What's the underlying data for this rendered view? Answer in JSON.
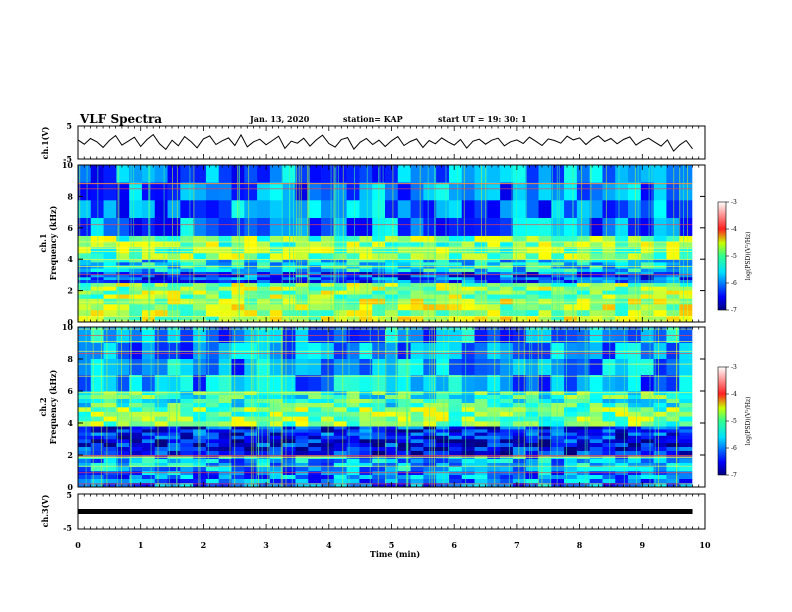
{
  "header": {
    "title": "VLF Spectra",
    "date": "Jan. 13, 2020",
    "station": "station= KAP",
    "start_ut": "start  UT  =   19: 30: 1"
  },
  "chart_data": [
    {
      "id": "ch1_voltage",
      "type": "line",
      "ylabel": "ch.1(V)",
      "ylim": [
        -5,
        5
      ],
      "yticks": [
        "-5",
        "5"
      ],
      "xlim": [
        0,
        10
      ],
      "color": "#000000",
      "series": [
        {
          "x": [
            0.0,
            0.1,
            0.2,
            0.3,
            0.4,
            0.5,
            0.6,
            0.7,
            0.8,
            0.9,
            1.0,
            1.1,
            1.2,
            1.3,
            1.4,
            1.5,
            1.6,
            1.7,
            1.8,
            1.9,
            2.0,
            2.1,
            2.2,
            2.3,
            2.4,
            2.5,
            2.6,
            2.7,
            2.8,
            2.9,
            3.0,
            3.1,
            3.2,
            3.3,
            3.4,
            3.5,
            3.6,
            3.7,
            3.8,
            3.9,
            4.0,
            4.1,
            4.2,
            4.3,
            4.4,
            4.5,
            4.6,
            4.7,
            4.8,
            4.9,
            5.0,
            5.1,
            5.2,
            5.3,
            5.4,
            5.5,
            5.6,
            5.7,
            5.8,
            5.9,
            6.0,
            6.1,
            6.2,
            6.3,
            6.4,
            6.5,
            6.6,
            6.7,
            6.8,
            6.9,
            7.0,
            7.1,
            7.2,
            7.3,
            7.4,
            7.5,
            7.6,
            7.7,
            7.8,
            7.9,
            8.0,
            8.1,
            8.2,
            8.3,
            8.4,
            8.5,
            8.6,
            8.7,
            8.8,
            8.9,
            9.0,
            9.1,
            9.2,
            9.3,
            9.4,
            9.5,
            9.6,
            9.7,
            9.8
          ],
          "y": [
            0.8,
            -0.5,
            1.2,
            0.2,
            -1.5,
            0.6,
            2.1,
            -0.8,
            0.4,
            1.6,
            -1.2,
            0.9,
            2.4,
            -0.4,
            -2.1,
            0.7,
            -1.0,
            1.8,
            0.3,
            -1.6,
            1.1,
            2.0,
            -0.6,
            0.5,
            1.4,
            -0.9,
            2.3,
            -1.3,
            0.2,
            1.0,
            -0.7,
            0.6,
            1.9,
            -1.8,
            0.4,
            -0.2,
            1.3,
            -1.1,
            0.8,
            2.2,
            -0.3,
            -1.4,
            0.9,
            1.5,
            -2.0,
            0.1,
            1.2,
            -0.6,
            0.7,
            -1.2,
            0.5,
            1.8,
            -0.9,
            0.3,
            1.1,
            -1.5,
            0.6,
            -0.4,
            1.4,
            0.2,
            -0.8,
            0.9,
            -1.7,
            0.4,
            1.0,
            -0.5,
            0.7,
            1.3,
            -1.0,
            0.2,
            0.8,
            -0.3,
            1.6,
            0.4,
            -0.9,
            1.1,
            0.6,
            -0.2,
            1.9,
            0.8,
            1.4,
            -0.6,
            1.0,
            2.0,
            0.3,
            1.2,
            -0.4,
            0.9,
            1.7,
            -0.8,
            0.5,
            1.3,
            0.1,
            -1.1,
            0.8,
            -2.6,
            -0.7,
            0.6,
            -1.9
          ]
        }
      ]
    },
    {
      "id": "ch1_spectrogram",
      "type": "heatmap",
      "ylabel": "ch.1\nFrequency (kHz)",
      "ylim": [
        0,
        10
      ],
      "yticks": [
        "0",
        "2",
        "4",
        "6",
        "8",
        "10"
      ],
      "xlim": [
        0,
        10
      ],
      "colorbar": {
        "label": "log(PSD)(V²/Hz)",
        "range": [
          -7,
          -3
        ],
        "ticks": [
          "-7",
          "-6",
          "-5",
          "-4",
          "-3"
        ]
      },
      "dominant_level_by_frequency": [
        {
          "from_khz": 0.0,
          "to_khz": 1.5,
          "log_psd": -4.8
        },
        {
          "from_khz": 1.5,
          "to_khz": 2.5,
          "log_psd": -4.9
        },
        {
          "from_khz": 2.5,
          "to_khz": 3.2,
          "log_psd": -6.2
        },
        {
          "from_khz": 3.2,
          "to_khz": 4.0,
          "log_psd": -5.6
        },
        {
          "from_khz": 4.0,
          "to_khz": 5.5,
          "log_psd": -5.0
        },
        {
          "from_khz": 5.5,
          "to_khz": 10.0,
          "log_psd": -6.0
        }
      ]
    },
    {
      "id": "ch2_spectrogram",
      "type": "heatmap",
      "ylabel": "ch.2\nFrequency (kHz)",
      "ylim": [
        0,
        10
      ],
      "yticks": [
        "0",
        "2",
        "4",
        "6",
        "8",
        "10"
      ],
      "xlim": [
        0,
        10
      ],
      "colorbar": {
        "label": "log(PSD)(V²/Hz)",
        "range": [
          -7,
          -3
        ],
        "ticks": [
          "-7",
          "-6",
          "-5",
          "-4",
          "-3"
        ]
      },
      "dominant_level_by_frequency": [
        {
          "from_khz": 0.0,
          "to_khz": 1.0,
          "log_psd": -6.0
        },
        {
          "from_khz": 1.0,
          "to_khz": 2.0,
          "log_psd": -5.8
        },
        {
          "from_khz": 2.0,
          "to_khz": 3.0,
          "log_psd": -6.5
        },
        {
          "from_khz": 3.0,
          "to_khz": 3.8,
          "log_psd": -6.4
        },
        {
          "from_khz": 3.8,
          "to_khz": 5.0,
          "log_psd": -5.0
        },
        {
          "from_khz": 5.0,
          "to_khz": 6.0,
          "log_psd": -5.3
        },
        {
          "from_khz": 6.0,
          "to_khz": 10.0,
          "log_psd": -5.9
        }
      ]
    },
    {
      "id": "ch3_voltage",
      "type": "line",
      "ylabel": "ch.3(V)",
      "ylim": [
        -5,
        5
      ],
      "yticks": [
        "-5",
        "5"
      ],
      "xlim": [
        0,
        10
      ],
      "xlabel": "Time (min)",
      "xticks": [
        "0",
        "1",
        "2",
        "3",
        "4",
        "5",
        "6",
        "7",
        "8",
        "9",
        "10"
      ],
      "color": "#000000",
      "series": [
        {
          "x": [
            0.0,
            9.8
          ],
          "y": [
            0.0,
            0.0
          ]
        }
      ]
    }
  ]
}
